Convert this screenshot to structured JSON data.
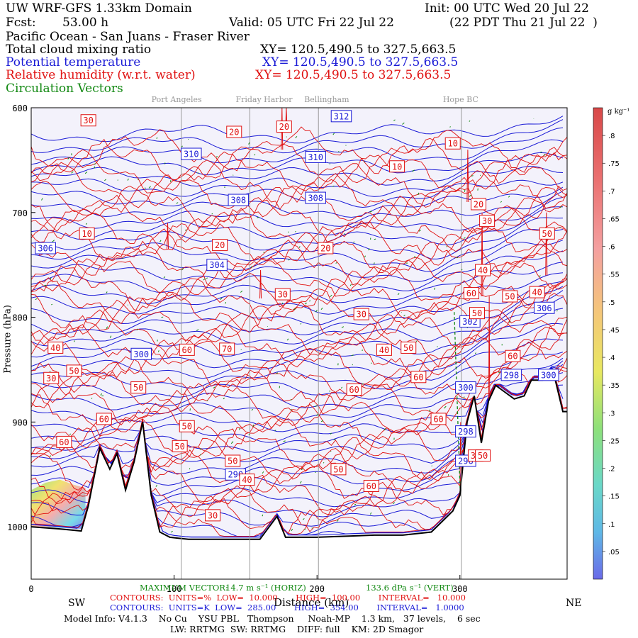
{
  "header": {
    "model": "UW WRF-GFS 1.33km Domain",
    "init": "Init: 00 UTC Wed 20 Jul 22",
    "fcst_label": "Fcst:",
    "fcst_value": "53.00 h",
    "valid": "Valid: 05 UTC Fri 22 Jul 22",
    "local": "(22 PDT Thu 21 Jul 22  )",
    "region": "Pacific Ocean - San Juans - Fraser River",
    "field1": "Total cloud mixing ratio",
    "field1_xy": "XY= 120.5,490.5 to 327.5,663.5",
    "field2": "Potential temperature",
    "field2_xy": "XY= 120.5,490.5 to 327.5,663.5",
    "field3": "Relative humidity (w.r.t. water)",
    "field3_xy": "XY= 120.5,490.5 to 327.5,663.5",
    "field4": "Circulation Vectors",
    "colors": {
      "potential_temperature": "#1a1ad6",
      "relative_humidity": "#e01010",
      "vectors": "#118811"
    }
  },
  "chart_data": {
    "type": "cross-section",
    "xlabel": "Distance (km)",
    "ylabel": "Pressure (hPa)",
    "x_range": [
      0,
      375
    ],
    "y_range": [
      1050,
      600
    ],
    "y_scale": "reversed",
    "x_ticks": [
      {
        "value": 0,
        "label": "0"
      },
      {
        "value": 100,
        "label": "100"
      },
      {
        "value": 200,
        "label": "200"
      },
      {
        "value": 300,
        "label": "300"
      }
    ],
    "y_ticks": [
      {
        "value": 600,
        "label": "600"
      },
      {
        "value": 700,
        "label": "700"
      },
      {
        "value": 800,
        "label": "800"
      },
      {
        "value": 900,
        "label": "900"
      },
      {
        "value": 1000,
        "label": "1000"
      }
    ],
    "left_label": "SW",
    "right_label": "NE",
    "locations": [
      {
        "name": "Port Angeles",
        "x": 105
      },
      {
        "name": "Friday Harbor",
        "x": 153
      },
      {
        "name": "Bellingham",
        "x": 201
      },
      {
        "name": "Hope BC",
        "x": 301
      }
    ],
    "terrain": [
      [
        0,
        1000
      ],
      [
        20,
        1002
      ],
      [
        35,
        1004
      ],
      [
        40,
        980
      ],
      [
        48,
        925
      ],
      [
        55,
        945
      ],
      [
        60,
        930
      ],
      [
        66,
        965
      ],
      [
        72,
        938
      ],
      [
        78,
        900
      ],
      [
        84,
        970
      ],
      [
        90,
        1005
      ],
      [
        97,
        1010
      ],
      [
        110,
        1012
      ],
      [
        140,
        1012
      ],
      [
        160,
        1012
      ],
      [
        172,
        990
      ],
      [
        178,
        1010
      ],
      [
        200,
        1010
      ],
      [
        240,
        1008
      ],
      [
        260,
        1008
      ],
      [
        280,
        1005
      ],
      [
        295,
        985
      ],
      [
        300,
        970
      ],
      [
        305,
        900
      ],
      [
        310,
        875
      ],
      [
        315,
        920
      ],
      [
        320,
        880
      ],
      [
        325,
        865
      ],
      [
        330,
        870
      ],
      [
        338,
        878
      ],
      [
        345,
        875
      ],
      [
        350,
        860
      ],
      [
        358,
        860
      ],
      [
        365,
        850
      ],
      [
        372,
        890
      ],
      [
        375,
        890
      ]
    ],
    "theta_series": {
      "name": "Potential temperature",
      "units": "K",
      "contour_low": 285.0,
      "contour_high": 354.0,
      "interval": 1.0,
      "labeled_contours": [
        {
          "value": 312,
          "x": 217,
          "p": 608
        },
        {
          "value": 310,
          "x": 112,
          "p": 644
        },
        {
          "value": 310,
          "x": 199,
          "p": 647
        },
        {
          "value": 308,
          "x": 145,
          "p": 688
        },
        {
          "value": 308,
          "x": 199,
          "p": 686
        },
        {
          "value": 306,
          "x": 10,
          "p": 734
        },
        {
          "value": 304,
          "x": 130,
          "p": 750
        },
        {
          "value": 306,
          "x": 359,
          "p": 791
        },
        {
          "value": 302,
          "x": 307,
          "p": 804
        },
        {
          "value": 300,
          "x": 77,
          "p": 835
        },
        {
          "value": 300,
          "x": 304,
          "p": 867
        },
        {
          "value": 298,
          "x": 336,
          "p": 855
        },
        {
          "value": 300,
          "x": 362,
          "p": 855
        },
        {
          "value": 298,
          "x": 304,
          "p": 909
        },
        {
          "value": 296,
          "x": 304,
          "p": 937
        },
        {
          "value": 290,
          "x": 143,
          "p": 950
        }
      ]
    },
    "rh_series": {
      "name": "Relative humidity (w.r.t. water)",
      "units": "%",
      "contour_low": 10.0,
      "contour_high": 100.0,
      "interval": 10.0,
      "labeled_contours": [
        {
          "value": 30,
          "x": 40,
          "p": 612
        },
        {
          "value": 20,
          "x": 142,
          "p": 623
        },
        {
          "value": 20,
          "x": 177,
          "p": 618
        },
        {
          "value": 10,
          "x": 295,
          "p": 634
        },
        {
          "value": 10,
          "x": 256,
          "p": 656
        },
        {
          "value": 20,
          "x": 313,
          "p": 692
        },
        {
          "value": 30,
          "x": 319,
          "p": 708
        },
        {
          "value": 10,
          "x": 39,
          "p": 720
        },
        {
          "value": 20,
          "x": 132,
          "p": 731
        },
        {
          "value": 20,
          "x": 206,
          "p": 734
        },
        {
          "value": 50,
          "x": 361,
          "p": 720
        },
        {
          "value": 40,
          "x": 316,
          "p": 755
        },
        {
          "value": 60,
          "x": 308,
          "p": 777
        },
        {
          "value": 40,
          "x": 354,
          "p": 776
        },
        {
          "value": 50,
          "x": 335,
          "p": 780
        },
        {
          "value": 30,
          "x": 176,
          "p": 778
        },
        {
          "value": 30,
          "x": 231,
          "p": 797
        },
        {
          "value": 50,
          "x": 312,
          "p": 796
        },
        {
          "value": 40,
          "x": 17,
          "p": 829
        },
        {
          "value": 60,
          "x": 109,
          "p": 831
        },
        {
          "value": 70,
          "x": 137,
          "p": 830
        },
        {
          "value": 40,
          "x": 247,
          "p": 831
        },
        {
          "value": 50,
          "x": 264,
          "p": 829
        },
        {
          "value": 50,
          "x": 30,
          "p": 851
        },
        {
          "value": 30,
          "x": 14,
          "p": 858
        },
        {
          "value": 60,
          "x": 271,
          "p": 857
        },
        {
          "value": 60,
          "x": 337,
          "p": 837
        },
        {
          "value": 50,
          "x": 75,
          "p": 867
        },
        {
          "value": 60,
          "x": 226,
          "p": 869
        },
        {
          "value": 60,
          "x": 51,
          "p": 897
        },
        {
          "value": 50,
          "x": 109,
          "p": 904
        },
        {
          "value": 60,
          "x": 285,
          "p": 897
        },
        {
          "value": 60,
          "x": 23,
          "p": 919
        },
        {
          "value": 50,
          "x": 104,
          "p": 923
        },
        {
          "value": 50,
          "x": 141,
          "p": 937
        },
        {
          "value": 40,
          "x": 151,
          "p": 955
        },
        {
          "value": 50,
          "x": 215,
          "p": 945
        },
        {
          "value": 60,
          "x": 238,
          "p": 961
        },
        {
          "value": 30,
          "x": 311,
          "p": 932
        },
        {
          "value": 50,
          "x": 316,
          "p": 932
        },
        {
          "value": 30,
          "x": 127,
          "p": 989
        }
      ]
    },
    "cloud_colorbar": {
      "units": "g kg⁻¹",
      "ticks": [
        {
          "value": 0.8,
          "label": ".8"
        },
        {
          "value": 0.75,
          "label": ".75"
        },
        {
          "value": 0.7,
          "label": ".7"
        },
        {
          "value": 0.65,
          "label": ".65"
        },
        {
          "value": 0.6,
          "label": ".6"
        },
        {
          "value": 0.55,
          "label": ".55"
        },
        {
          "value": 0.5,
          "label": ".5"
        },
        {
          "value": 0.45,
          "label": ".45"
        },
        {
          "value": 0.4,
          "label": ".4"
        },
        {
          "value": 0.35,
          "label": ".35"
        },
        {
          "value": 0.3,
          "label": ".3"
        },
        {
          "value": 0.25,
          "label": ".25"
        },
        {
          "value": 0.2,
          "label": ".2"
        },
        {
          "value": 0.15,
          "label": ".15"
        },
        {
          "value": 0.1,
          "label": ".1"
        },
        {
          "value": 0.05,
          "label": ".05"
        }
      ],
      "range": [
        0.0,
        0.85
      ]
    }
  },
  "footer": {
    "max_vector_label": "MAXIMUM VECTOR:",
    "max_vector_horiz": "14.7 m s⁻¹ (HORIZ)",
    "max_vector_vert": "133.6 dPa s⁻¹ (VERT)",
    "contours_red": "CONTOURS:  UNITS=%  LOW=  10.000       HIGH=  100.00       INTERVAL=   10.000",
    "contours_blue": "CONTOURS:  UNITS=K  LOW=  285.00       HIGH=  354.00       INTERVAL=   1.0000",
    "model_info": "Model Info: V4.1.3    No Cu    YSU PBL   Thompson     Noah-MP    1.3 km,   37 levels,    6 sec",
    "model_info2": "LW: RRTMG  SW: RRTMG    DIFF: full    KM: 2D Smagor"
  }
}
